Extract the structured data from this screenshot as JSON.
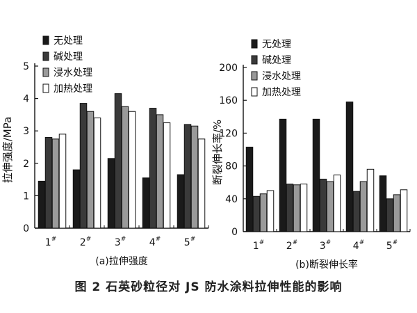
{
  "figure_caption": "图 2   石英砂粒径对 JS 防水涂料拉伸性能的影响",
  "colors": {
    "无处理": "#1a1a1a",
    "碱处理": "#3a3a3a",
    "浸水处理": "#9a9a9a",
    "加热处理": "#ffffff"
  },
  "chart_data": [
    {
      "type": "bar",
      "subtitle": "(a)拉伸强度",
      "ylabel": "拉伸强度/MPa",
      "ylim": [
        0,
        5
      ],
      "yticks": [
        0,
        1,
        2,
        3,
        4,
        5
      ],
      "categories": [
        "1#",
        "2#",
        "3#",
        "4#",
        "5#"
      ],
      "legend_position": "top-left",
      "series": [
        {
          "name": "无处理",
          "values": [
            1.45,
            1.8,
            2.15,
            1.55,
            1.65
          ]
        },
        {
          "name": "碱处理",
          "values": [
            2.8,
            3.85,
            4.15,
            3.7,
            3.2
          ]
        },
        {
          "name": "浸水处理",
          "values": [
            2.75,
            3.6,
            3.75,
            3.5,
            3.15
          ]
        },
        {
          "name": "加热处理",
          "values": [
            2.9,
            3.4,
            3.6,
            3.25,
            2.75
          ]
        }
      ]
    },
    {
      "type": "bar",
      "subtitle": "(b)断裂伸长率",
      "ylabel": "断裂伸长率/%",
      "ylim": [
        0,
        200
      ],
      "yticks": [
        0,
        40,
        80,
        120,
        160,
        200
      ],
      "categories": [
        "1#",
        "2#",
        "3#",
        "4#",
        "5#"
      ],
      "legend_position": "top-left",
      "series": [
        {
          "name": "无处理",
          "values": [
            103,
            137,
            137,
            158,
            68
          ]
        },
        {
          "name": "碱处理",
          "values": [
            43,
            58,
            64,
            49,
            40
          ]
        },
        {
          "name": "浸水处理",
          "values": [
            46,
            57,
            61,
            61,
            45
          ]
        },
        {
          "name": "加热处理",
          "values": [
            50,
            58,
            69,
            76,
            51
          ]
        }
      ]
    }
  ]
}
